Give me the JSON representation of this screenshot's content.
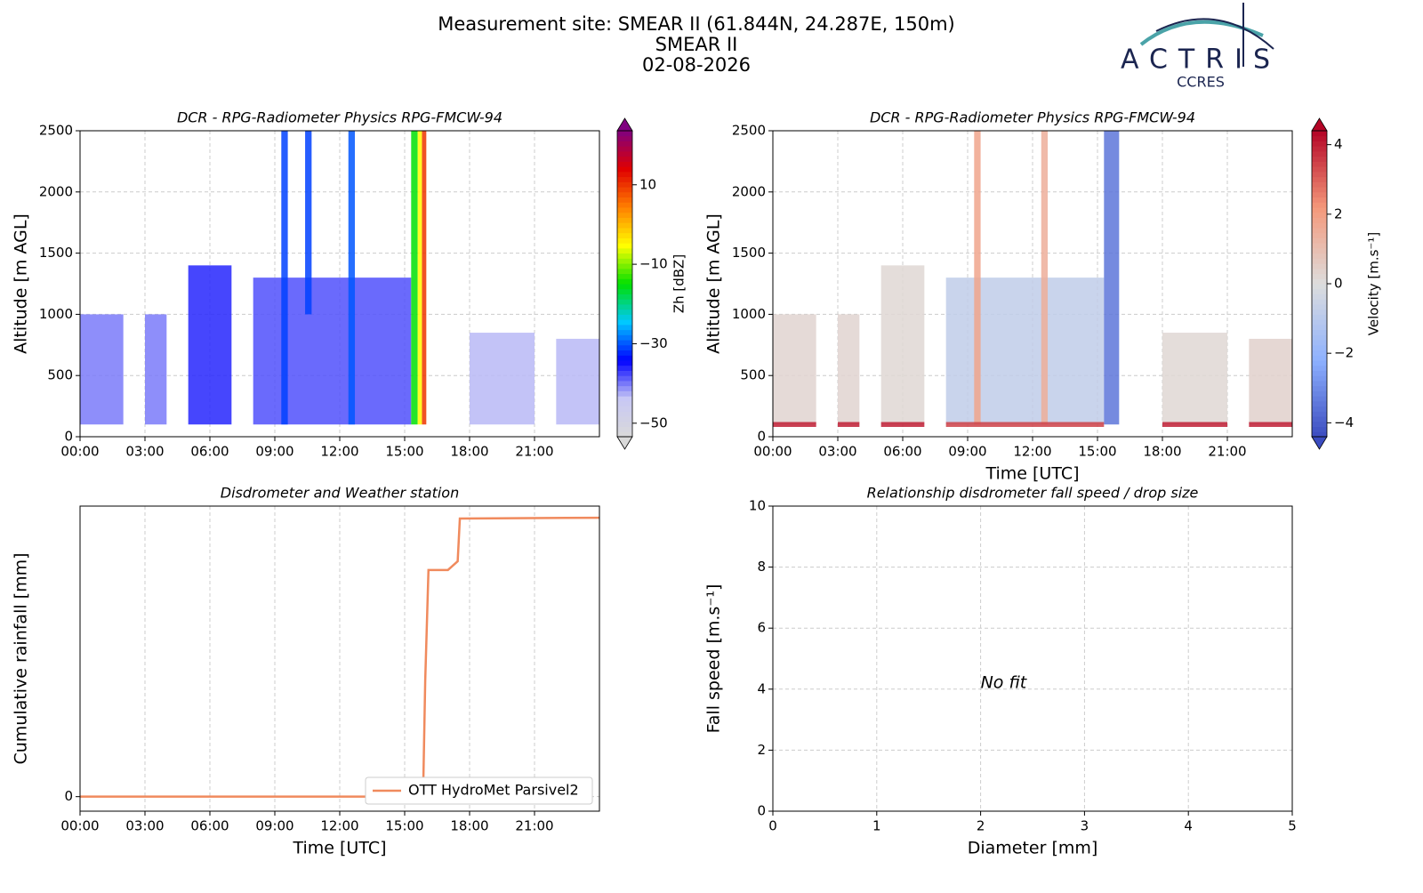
{
  "header": {
    "site": "Measurement site: SMEAR II (61.844N, 24.287E, 150m)",
    "name": "SMEAR II",
    "date": "02-08-2026",
    "logo": "ACTRIS",
    "logo_sub": "CCRES"
  },
  "chart_data": [
    {
      "type": "heatmap",
      "title": "DCR - RPG-Radiometer Physics RPG-FMCW-94",
      "ylabel": "Altitude [m AGL]",
      "colorbar_label": "Zh [dBZ]",
      "xlim": [
        0,
        24
      ],
      "ylim": [
        0,
        2500
      ],
      "xticks": [
        {
          "value": 0,
          "label": "00:00"
        },
        {
          "value": 3,
          "label": "03:00"
        },
        {
          "value": 6,
          "label": "06:00"
        },
        {
          "value": 9,
          "label": "09:00"
        },
        {
          "value": 12,
          "label": "12:00"
        },
        {
          "value": 15,
          "label": "15:00"
        },
        {
          "value": 18,
          "label": "18:00"
        },
        {
          "value": 21,
          "label": "21:00"
        }
      ],
      "yticks": [
        0,
        500,
        1000,
        1500,
        2000,
        2500
      ],
      "grid": true,
      "clim": [
        -53.4,
        23.6
      ],
      "cticks": [
        {
          "value": -50,
          "label": "−50"
        },
        {
          "value": -30,
          "label": "−30"
        },
        {
          "value": -10,
          "label": "−10"
        },
        10
      ],
      "colormap": [
        "#d9d9d9",
        "#c8c8f5",
        "#0000ff",
        "#00c8ff",
        "#00e000",
        "#ffff00",
        "#ff8000",
        "#e00000",
        "#800080"
      ],
      "echoes": [
        {
          "x": [
            0,
            2
          ],
          "bottom": 100,
          "top": 1000,
          "value": -40
        },
        {
          "x": [
            3,
            4
          ],
          "bottom": 100,
          "top": 1000,
          "value": -40
        },
        {
          "x": [
            5,
            7
          ],
          "bottom": 100,
          "top": 1400,
          "value": -36
        },
        {
          "x": [
            8,
            15.3
          ],
          "bottom": 100,
          "top": 1300,
          "value": -38
        },
        {
          "x": [
            9.3,
            9.6
          ],
          "bottom": 100,
          "top": 2500,
          "value": -31
        },
        {
          "x": [
            10.4,
            10.7
          ],
          "bottom": 1000,
          "top": 2500,
          "value": -31
        },
        {
          "x": [
            12.4,
            12.7
          ],
          "bottom": 100,
          "top": 2500,
          "value": -30
        },
        {
          "x": [
            15.3,
            15.6
          ],
          "bottom": 100,
          "top": 2500,
          "value": -15
        },
        {
          "x": [
            15.6,
            15.8
          ],
          "bottom": 100,
          "top": 2500,
          "value": -5
        },
        {
          "x": [
            15.8,
            16
          ],
          "bottom": 100,
          "top": 2500,
          "value": 10
        },
        {
          "x": [
            18,
            21
          ],
          "bottom": 100,
          "top": 850,
          "value": -43
        },
        {
          "x": [
            22,
            24
          ],
          "bottom": 100,
          "top": 800,
          "value": -43
        }
      ]
    },
    {
      "type": "heatmap",
      "title": "DCR - RPG-Radiometer Physics RPG-FMCW-94",
      "ylabel": "Altitude [m AGL]",
      "xlabel": "Time [UTC]",
      "colorbar_label": "Velocity [m.s⁻¹]",
      "xlim": [
        0,
        24
      ],
      "ylim": [
        0,
        2500
      ],
      "xticks": [
        {
          "value": 0,
          "label": "00:00"
        },
        {
          "value": 3,
          "label": "03:00"
        },
        {
          "value": 6,
          "label": "06:00"
        },
        {
          "value": 9,
          "label": "09:00"
        },
        {
          "value": 12,
          "label": "12:00"
        },
        {
          "value": 15,
          "label": "15:00"
        },
        {
          "value": 18,
          "label": "18:00"
        },
        {
          "value": 21,
          "label": "21:00"
        }
      ],
      "yticks": [
        0,
        500,
        1000,
        1500,
        2000,
        2500
      ],
      "grid": true,
      "clim": [
        -4.4,
        4.4
      ],
      "cticks": [
        {
          "value": -4,
          "label": "−4"
        },
        {
          "value": -2,
          "label": "−2"
        },
        0,
        2,
        4
      ],
      "colormap": [
        "#3b4cc0",
        "#8db0fe",
        "#dddddd",
        "#f4987a",
        "#b40426"
      ],
      "echoes": [
        {
          "x": [
            0,
            2
          ],
          "bottom": 100,
          "top": 1000,
          "value": 0.3
        },
        {
          "x": [
            3,
            4
          ],
          "bottom": 100,
          "top": 1000,
          "value": 0.3
        },
        {
          "x": [
            5,
            7
          ],
          "bottom": 100,
          "top": 1400,
          "value": 0.2
        },
        {
          "x": [
            8,
            15.3
          ],
          "bottom": 100,
          "top": 1300,
          "value": -0.8
        },
        {
          "x": [
            9.3,
            9.6
          ],
          "bottom": 100,
          "top": 2500,
          "value": 1.8
        },
        {
          "x": [
            12.4,
            12.7
          ],
          "bottom": 100,
          "top": 2500,
          "value": 1.5
        },
        {
          "x": [
            15.3,
            16
          ],
          "bottom": 100,
          "top": 2500,
          "value": -3.5
        },
        {
          "x": [
            18,
            21
          ],
          "bottom": 100,
          "top": 850,
          "value": 0.2
        },
        {
          "x": [
            22,
            24
          ],
          "bottom": 100,
          "top": 800,
          "value": 0.4
        },
        {
          "x": [
            0,
            2
          ],
          "bottom": 80,
          "top": 120,
          "value": 4
        },
        {
          "x": [
            3,
            4
          ],
          "bottom": 80,
          "top": 120,
          "value": 4
        },
        {
          "x": [
            5,
            7
          ],
          "bottom": 80,
          "top": 120,
          "value": 4
        },
        {
          "x": [
            8,
            15.3
          ],
          "bottom": 80,
          "top": 120,
          "value": 3.5
        },
        {
          "x": [
            18,
            21
          ],
          "bottom": 80,
          "top": 120,
          "value": 4
        },
        {
          "x": [
            22,
            24
          ],
          "bottom": 80,
          "top": 120,
          "value": 4
        }
      ]
    },
    {
      "type": "line",
      "title": "Disdrometer and Weather station",
      "ylabel": "Cumulative rainfall [mm]",
      "xlabel": "Time [UTC]",
      "xlim": [
        0,
        24
      ],
      "ylim": [
        -0.5,
        10
      ],
      "xticks": [
        {
          "value": 0,
          "label": "00:00"
        },
        {
          "value": 3,
          "label": "03:00"
        },
        {
          "value": 6,
          "label": "06:00"
        },
        {
          "value": 9,
          "label": "09:00"
        },
        {
          "value": 12,
          "label": "12:00"
        },
        {
          "value": 15,
          "label": "15:00"
        },
        {
          "value": 18,
          "label": "18:00"
        },
        {
          "value": 21,
          "label": "21:00"
        }
      ],
      "yticks": [
        0
      ],
      "grid": true,
      "legend": "lower right",
      "series": [
        {
          "name": "OTT HydroMet Parsivel2",
          "color": "#f08a5d",
          "x": [
            0,
            15.85,
            15.95,
            16.1,
            17.0,
            17.3,
            17.45,
            17.55,
            24
          ],
          "values": [
            0,
            0,
            4,
            7.8,
            7.8,
            8.0,
            8.1,
            9.57,
            9.6
          ]
        }
      ]
    },
    {
      "type": "scatter",
      "title": "Relationship disdrometer fall speed / drop size",
      "ylabel": "Fall speed [m.s⁻¹]",
      "xlabel": "Diameter [mm]",
      "xlim": [
        0,
        5
      ],
      "ylim": [
        0,
        10
      ],
      "xticks": [
        0,
        1,
        2,
        3,
        4,
        5
      ],
      "yticks": [
        0,
        2,
        4,
        6,
        8,
        10
      ],
      "grid": true,
      "annotation": "No fit"
    }
  ]
}
